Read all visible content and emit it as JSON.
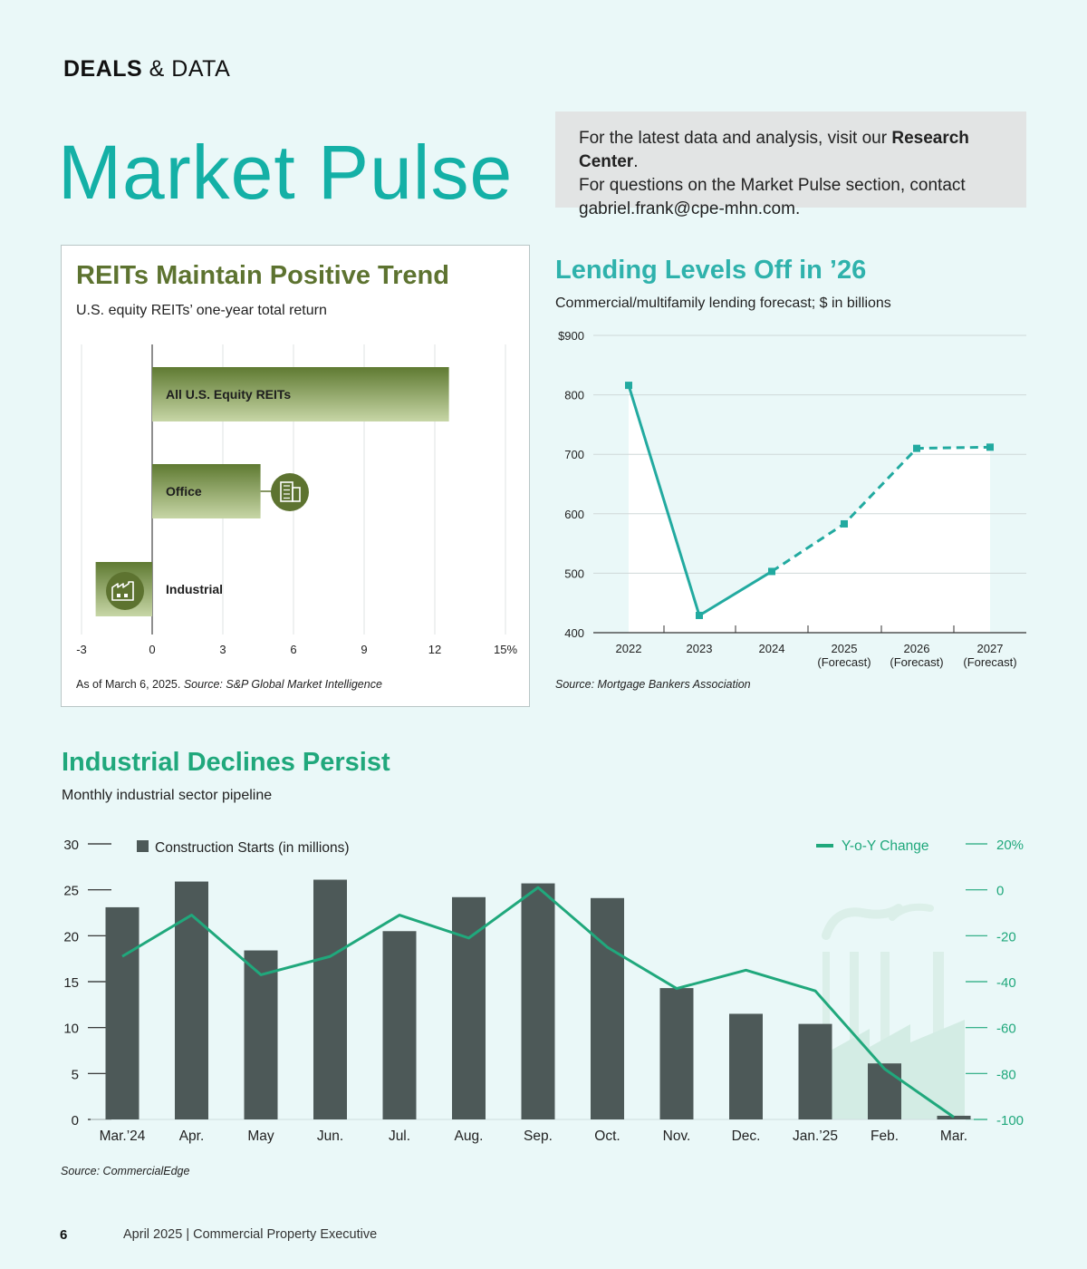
{
  "header": {
    "section_bold": "DEALS",
    "section_rest": " & DATA",
    "title": "Market Pulse"
  },
  "info": {
    "line1_pre": "For the latest data and analysis, visit our ",
    "line1_bold": "Research Center",
    "line1_post": ".",
    "line2": "For questions on the Market Pulse section, contact",
    "line3": "gabriel.frank@cpe-mhn.com."
  },
  "reits": {
    "title": "REITs Maintain Positive Trend",
    "subtitle": "U.S. equity REITs’ one-year total return",
    "source_pre": "As of March 6, 2025. ",
    "source_em": "Source: S&P Global Market Intelligence",
    "icon_office": "office-building-icon",
    "icon_industrial": "factory-icon"
  },
  "lending": {
    "title": "Lending Levels Off in ’26",
    "subtitle": "Commercial/multifamily lending forecast; $ in billions",
    "source": "Source: Mortgage Bankers Association"
  },
  "industrial": {
    "title": "Industrial Declines Persist",
    "subtitle": "Monthly industrial sector pipeline",
    "source": "Source: CommercialEdge"
  },
  "footer": {
    "page": "6",
    "text": "April 2025  |  Commercial Property Executive"
  },
  "colors": {
    "teal": "#14b0a6",
    "olive": "#5d7330",
    "green": "#20a87c",
    "bar_dark": "#4d5958"
  },
  "chart_data": [
    {
      "id": "reits",
      "type": "bar",
      "orientation": "horizontal",
      "categories": [
        "All U.S. Equity REITs",
        "Office",
        "Industrial"
      ],
      "values": [
        12.6,
        4.6,
        -2.4
      ],
      "xlim": [
        -3,
        15
      ],
      "xticks": [
        -3,
        0,
        3,
        6,
        9,
        12,
        15
      ],
      "xtick_labels": [
        "-3",
        "0",
        "3",
        "6",
        "9",
        "12",
        "15%"
      ],
      "grid": true
    },
    {
      "id": "lending",
      "type": "line",
      "x": [
        "2022",
        "2023",
        "2024",
        "2025",
        "2026",
        "2027"
      ],
      "x_sublabels": [
        "",
        "",
        "",
        "(Forecast)",
        "(Forecast)",
        "(Forecast)"
      ],
      "values": [
        816,
        429,
        503,
        583,
        710,
        712
      ],
      "forecast_from_index": 2,
      "ylim": [
        400,
        900
      ],
      "yticks": [
        400,
        500,
        600,
        700,
        800,
        900
      ],
      "ytick_labels": [
        "400",
        "500",
        "600",
        "700",
        "800",
        "$900"
      ],
      "grid": true
    },
    {
      "id": "industrial",
      "type": "bar",
      "categories": [
        "Mar.’24",
        "Apr.",
        "May",
        "Jun.",
        "Jul.",
        "Aug.",
        "Sep.",
        "Oct.",
        "Nov.",
        "Dec.",
        "Jan.’25",
        "Feb.",
        "Mar."
      ],
      "series": [
        {
          "name": "Construction Starts (in millions)",
          "type": "bar",
          "axis": "left",
          "values": [
            23.1,
            25.9,
            18.4,
            26.1,
            20.5,
            24.2,
            25.7,
            24.1,
            14.3,
            11.5,
            10.4,
            6.1,
            0.4
          ]
        },
        {
          "name": "Y-o-Y Change",
          "type": "line",
          "axis": "right",
          "values": [
            -29,
            -11,
            -37,
            -29,
            -11,
            -21,
            1,
            -25,
            -43,
            -35,
            -44,
            -78,
            -99
          ]
        }
      ],
      "ylim_left": [
        0,
        30
      ],
      "yticks_left": [
        0,
        5,
        10,
        15,
        20,
        25,
        30
      ],
      "ylim_right": [
        -100,
        20
      ],
      "yticks_right": [
        -100,
        -80,
        -60,
        -40,
        -20,
        0,
        20
      ],
      "ytick_labels_right": [
        "-100",
        "-80",
        "-60",
        "-40",
        "-20",
        "0",
        "20%"
      ],
      "legend": "top"
    }
  ]
}
